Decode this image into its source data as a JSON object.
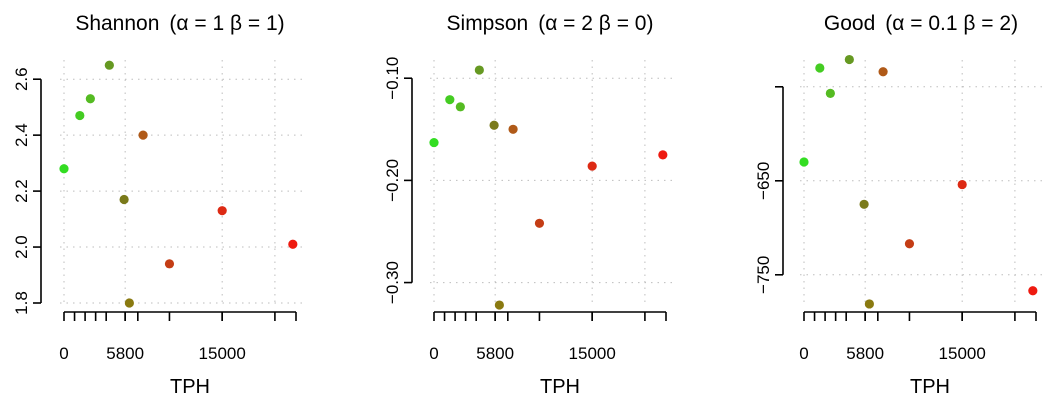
{
  "chart_data": [
    {
      "type": "scatter",
      "title": "Shannon",
      "params": "(α = 1   β = 1)",
      "xlabel": "TPH",
      "ylabel": "",
      "x_ticks": [
        0,
        5800,
        15000
      ],
      "x_tick_labels": [
        "0",
        "5800",
        "15000"
      ],
      "x_minor_ticks": [
        1000,
        2000,
        3000,
        4000,
        5800,
        7000,
        10000,
        15000,
        20000,
        22000
      ],
      "xlim": [
        0,
        22000
      ],
      "y_ticks": [
        1.8,
        2.0,
        2.2,
        2.4,
        2.6
      ],
      "y_tick_labels": [
        "1.8",
        "2.0",
        "2.2",
        "2.4",
        "2.6"
      ],
      "ylim": [
        1.8,
        2.64
      ],
      "grid": true,
      "points": [
        {
          "x": 0,
          "y": 2.28,
          "color": "#33dd22"
        },
        {
          "x": 1500,
          "y": 2.47,
          "color": "#44cc22"
        },
        {
          "x": 2500,
          "y": 2.53,
          "color": "#55bb22"
        },
        {
          "x": 4300,
          "y": 2.65,
          "color": "#669922"
        },
        {
          "x": 5700,
          "y": 2.17,
          "color": "#7a7a1a"
        },
        {
          "x": 6200,
          "y": 1.8,
          "color": "#8a7a10"
        },
        {
          "x": 7500,
          "y": 2.4,
          "color": "#b05a18"
        },
        {
          "x": 10000,
          "y": 1.94,
          "color": "#c43d15"
        },
        {
          "x": 15000,
          "y": 2.13,
          "color": "#dd2a14"
        },
        {
          "x": 21700,
          "y": 2.01,
          "color": "#ee1a10"
        }
      ]
    },
    {
      "type": "scatter",
      "title": "Simpson",
      "params": "(α = 2   β = 0)",
      "xlabel": "TPH",
      "ylabel": "",
      "x_ticks": [
        0,
        5800,
        15000
      ],
      "x_tick_labels": [
        "0",
        "5800",
        "15000"
      ],
      "x_minor_ticks": [
        1000,
        2000,
        3000,
        4000,
        5800,
        7000,
        10000,
        15000,
        20000,
        22000
      ],
      "xlim": [
        0,
        22000
      ],
      "y_ticks": [
        -0.1,
        -0.2,
        -0.3
      ],
      "y_tick_labels": [
        "−0.10",
        "−0.20",
        "−0.30"
      ],
      "ylim": [
        -0.32,
        -0.09
      ],
      "grid": true,
      "points": [
        {
          "x": 0,
          "y": -0.163,
          "color": "#33dd22"
        },
        {
          "x": 1500,
          "y": -0.121,
          "color": "#44cc22"
        },
        {
          "x": 2500,
          "y": -0.128,
          "color": "#55bb22"
        },
        {
          "x": 4300,
          "y": -0.092,
          "color": "#669922"
        },
        {
          "x": 5700,
          "y": -0.146,
          "color": "#7a7a1a"
        },
        {
          "x": 6200,
          "y": -0.322,
          "color": "#8a7a10"
        },
        {
          "x": 7500,
          "y": -0.15,
          "color": "#b05a18"
        },
        {
          "x": 10000,
          "y": -0.242,
          "color": "#c43d15"
        },
        {
          "x": 15000,
          "y": -0.186,
          "color": "#dd2a14"
        },
        {
          "x": 21700,
          "y": -0.175,
          "color": "#ee1a10"
        }
      ]
    },
    {
      "type": "scatter",
      "title": "Good",
      "params": "(α = 0.1   β = 2)",
      "xlabel": "TPH",
      "ylabel": "",
      "x_ticks": [
        0,
        5800,
        15000
      ],
      "x_tick_labels": [
        "0",
        "5800",
        "15000"
      ],
      "x_minor_ticks": [
        1000,
        2000,
        3000,
        4000,
        5800,
        7000,
        10000,
        15000,
        20000,
        22000
      ],
      "xlim": [
        0,
        22000
      ],
      "y_ticks": [
        -550,
        -650,
        -750
      ],
      "y_tick_labels": [
        "",
        "−650",
        "−750"
      ],
      "ylim": [
        -780,
        -530
      ],
      "grid": true,
      "points": [
        {
          "x": 0,
          "y": -630,
          "color": "#33dd22"
        },
        {
          "x": 1500,
          "y": -530,
          "color": "#44cc22"
        },
        {
          "x": 2500,
          "y": -557,
          "color": "#55bb22"
        },
        {
          "x": 4300,
          "y": -521,
          "color": "#669922"
        },
        {
          "x": 5700,
          "y": -675,
          "color": "#7a7a1a"
        },
        {
          "x": 6200,
          "y": -781,
          "color": "#8a7a10"
        },
        {
          "x": 7500,
          "y": -534,
          "color": "#b05a18"
        },
        {
          "x": 10000,
          "y": -717,
          "color": "#c43d15"
        },
        {
          "x": 15000,
          "y": -654,
          "color": "#dd2a14"
        },
        {
          "x": 21700,
          "y": -767,
          "color": "#ee1a10"
        }
      ]
    }
  ]
}
